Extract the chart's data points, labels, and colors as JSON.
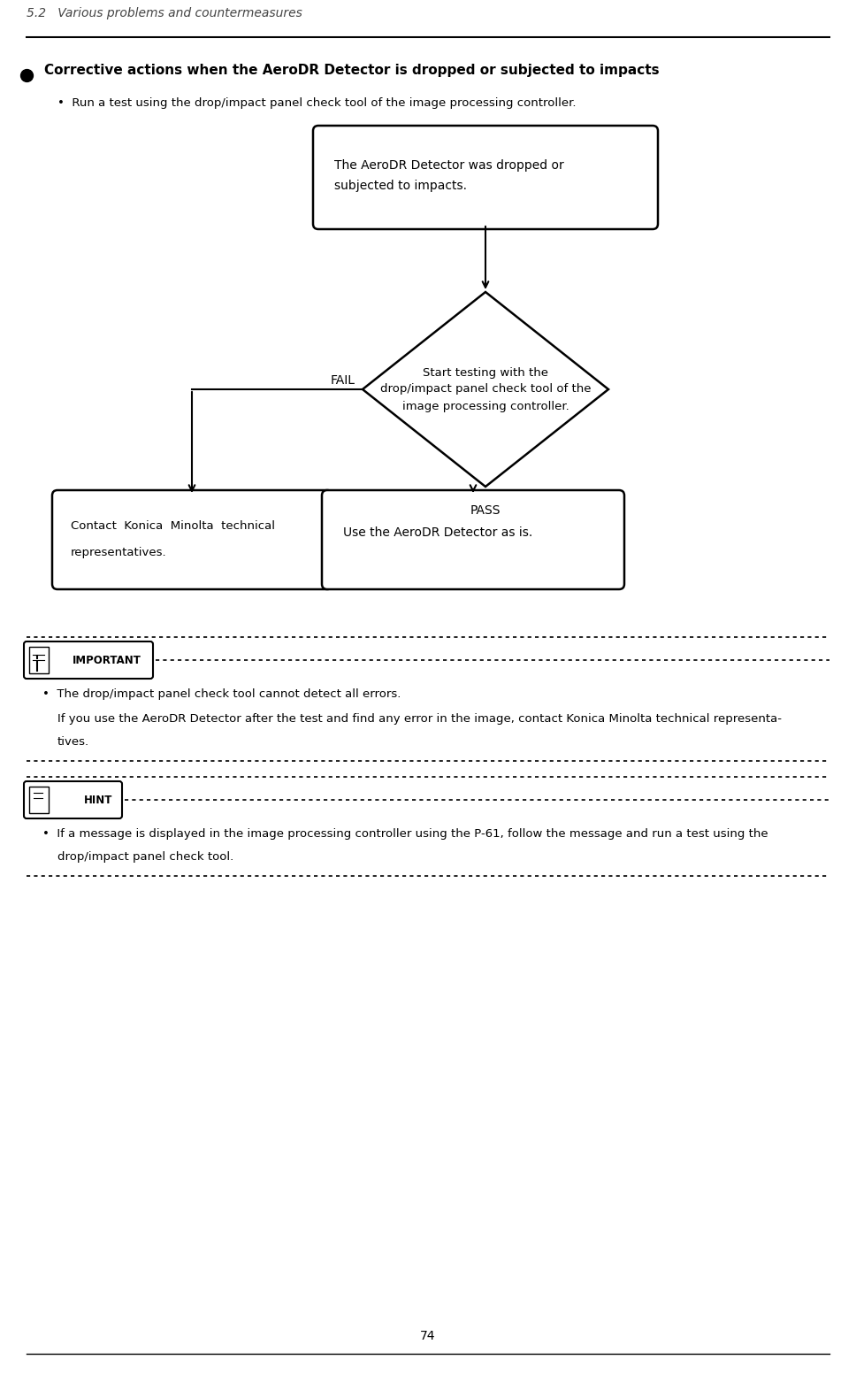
{
  "page_title": "5.2   Various problems and countermeasures",
  "page_number": "74",
  "section_bullet": "Corrective actions when the AeroDR Detector is dropped or subjected to impacts",
  "sub_bullet": "Run a test using the drop/impact panel check tool of the image processing controller.",
  "box1_text": "The AeroDR Detector was dropped or\nsubjected to impacts.",
  "diamond_text": "Start testing with the\ndrop/impact panel check tool of the\nimage processing controller.",
  "fail_label": "FAIL",
  "pass_label": "PASS",
  "box_left_line1": "Contact  Konica  Minolta  technical",
  "box_left_line2": "representatives.",
  "box_right_text": "Use the AeroDR Detector as is.",
  "important_label": "IMPORTANT",
  "important_bullet1": "The drop/impact panel check tool cannot detect all errors.",
  "important_bullet2a": "If you use the AeroDR Detector after the test and find any error in the image, contact Konica Minolta technical representa-",
  "important_bullet2b": "tives.",
  "hint_label": "HINT",
  "hint_bullet1": "If a message is displayed in the image processing controller using the P-61, follow the message and run a test using the",
  "hint_bullet2": "drop/impact panel check tool.",
  "bg_color": "#ffffff",
  "text_color": "#000000"
}
